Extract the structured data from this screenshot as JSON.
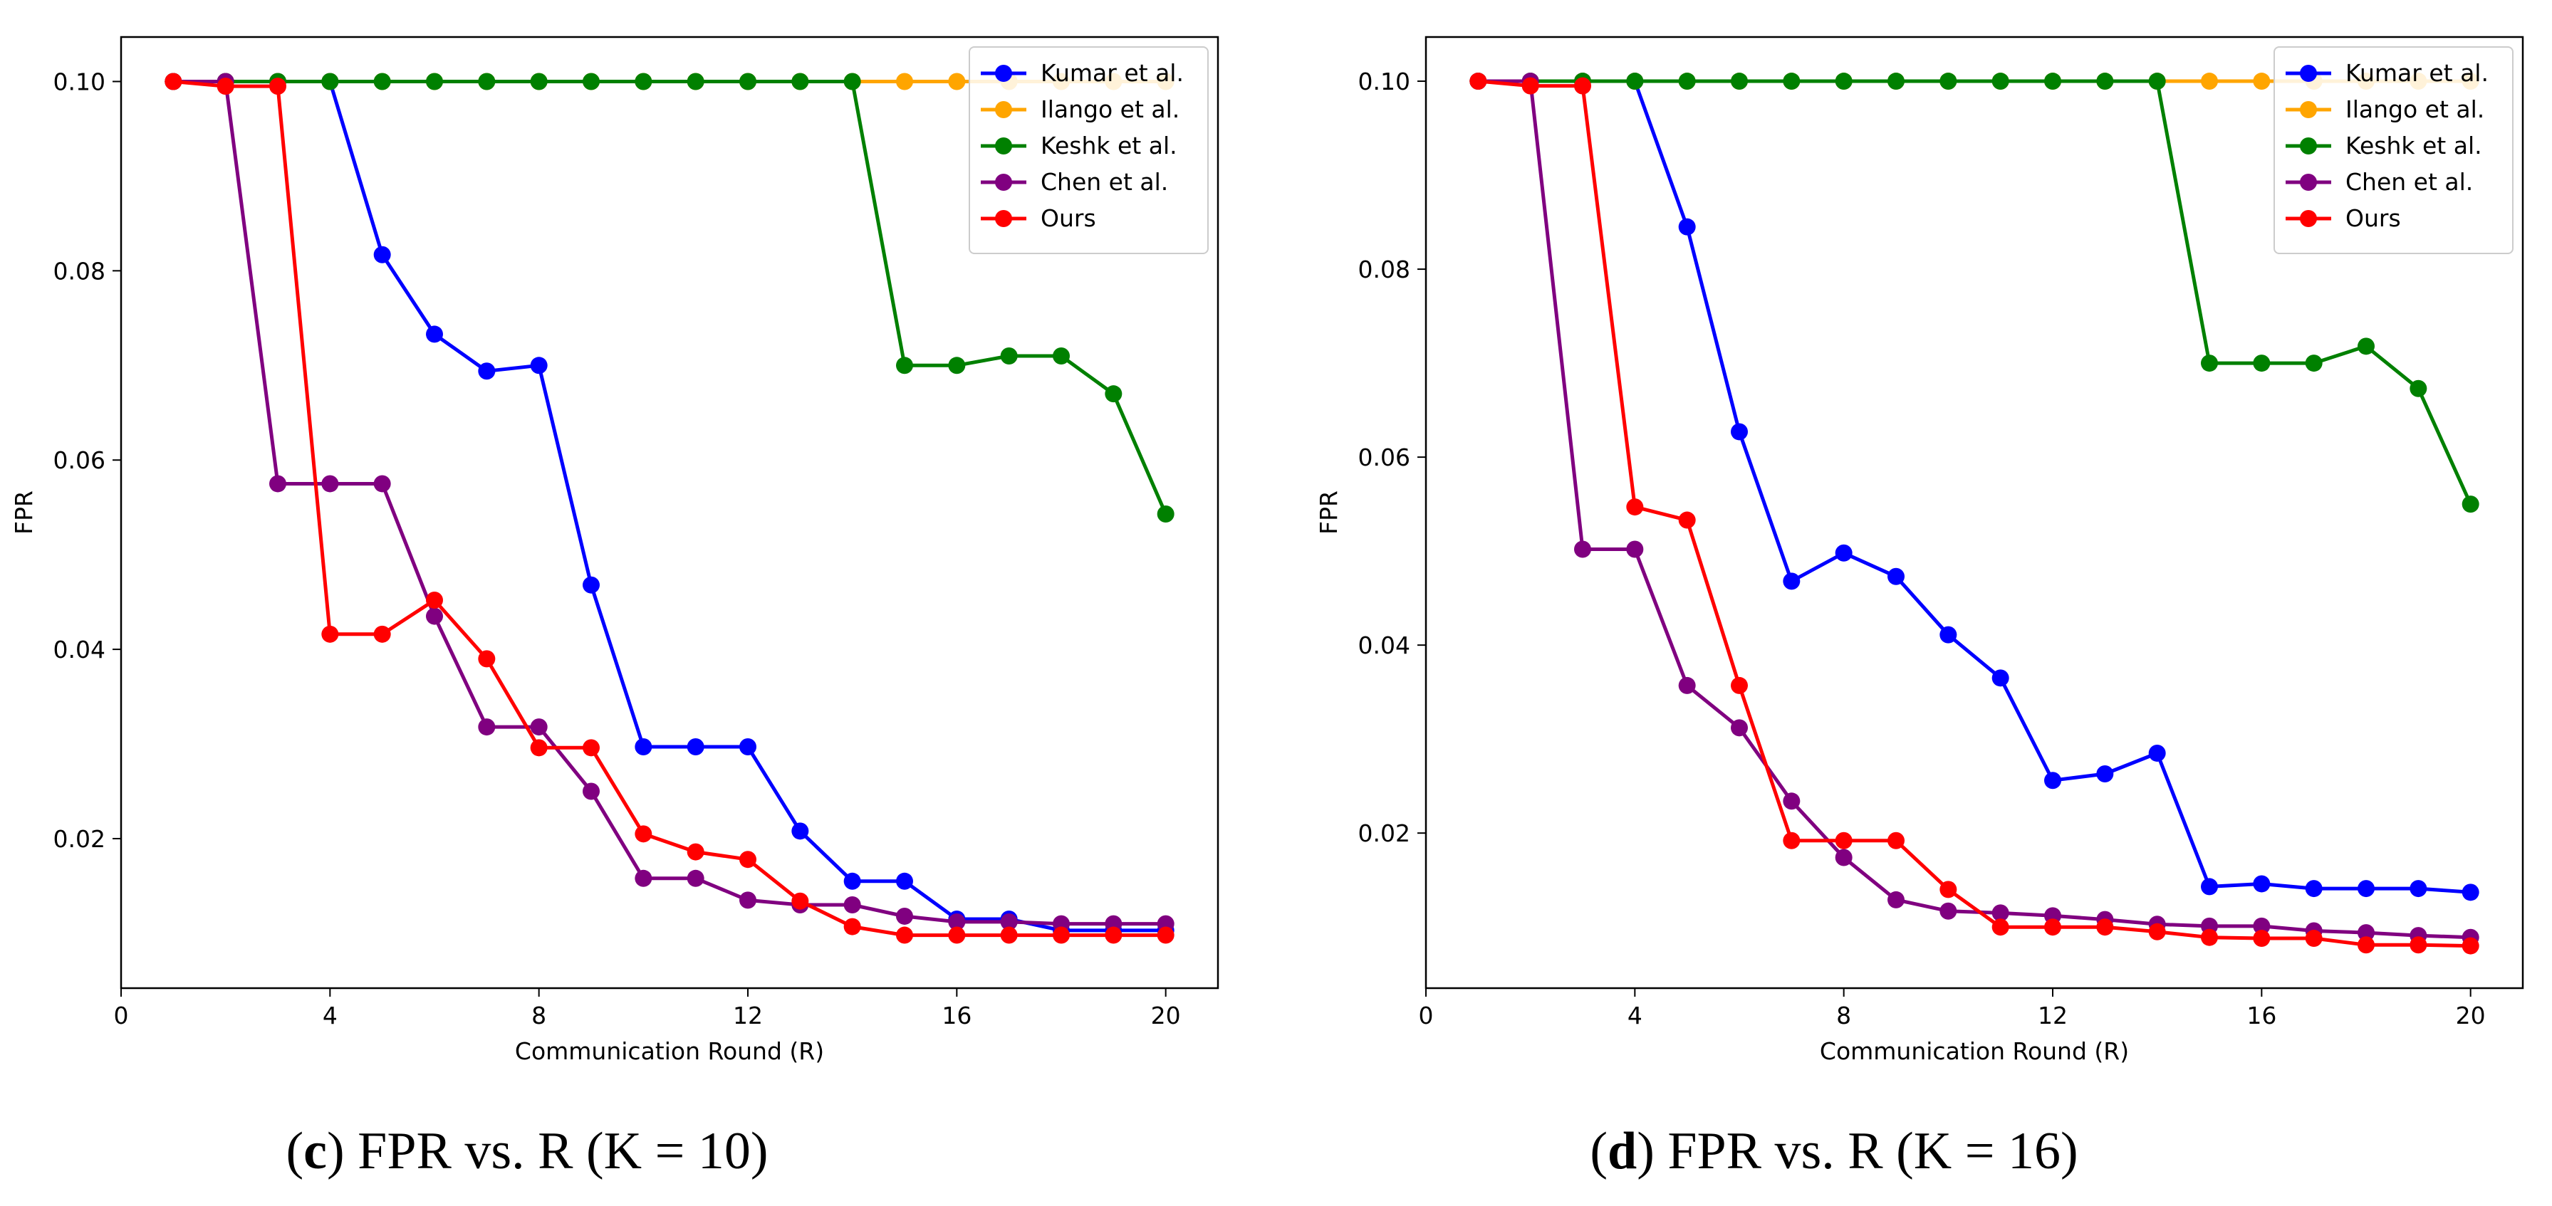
{
  "chart_data": [
    {
      "type": "line",
      "panel": "c",
      "title": "",
      "xlabel": "Communication Round (R)",
      "ylabel": "FPR",
      "xlim": [
        0,
        21
      ],
      "ylim": [
        0.0042,
        0.1047
      ],
      "xticks": [
        0,
        4,
        8,
        12,
        16,
        20
      ],
      "yticks": [
        0.02,
        0.04,
        0.06,
        0.08,
        0.1
      ],
      "ytick_labels": [
        "0.02",
        "0.04",
        "0.06",
        "0.08",
        "0.10"
      ],
      "legend_position": "top-right",
      "x": [
        1,
        2,
        3,
        4,
        5,
        6,
        7,
        8,
        9,
        10,
        11,
        12,
        13,
        14,
        15,
        16,
        17,
        18,
        19,
        20
      ],
      "series": [
        {
          "name": "Kumar et al.",
          "color": "#0000ff",
          "values": [
            0.1,
            0.1,
            0.1,
            0.1,
            0.0817,
            0.0733,
            0.0694,
            0.07,
            0.0468,
            0.0297,
            0.0297,
            0.0297,
            0.0208,
            0.0155,
            0.0155,
            0.0115,
            0.0115,
            0.0103,
            0.0103,
            0.0103
          ]
        },
        {
          "name": "Ilango et al.",
          "color": "#ffa500",
          "values": [
            0.1,
            0.1,
            0.1,
            0.1,
            0.1,
            0.1,
            0.1,
            0.1,
            0.1,
            0.1,
            0.1,
            0.1,
            0.1,
            0.1,
            0.1,
            0.1,
            0.1,
            0.1,
            0.1,
            0.1
          ]
        },
        {
          "name": "Keshk et al.",
          "color": "#008000",
          "values": [
            0.1,
            0.1,
            0.1,
            0.1,
            0.1,
            0.1,
            0.1,
            0.1,
            0.1,
            0.1,
            0.1,
            0.1,
            0.1,
            0.1,
            0.07,
            0.07,
            0.071,
            0.071,
            0.067,
            0.0543
          ]
        },
        {
          "name": "Chen et al.",
          "color": "#800080",
          "values": [
            0.1,
            0.1,
            0.0575,
            0.0575,
            0.0575,
            0.0435,
            0.0318,
            0.0318,
            0.025,
            0.0158,
            0.0158,
            0.0135,
            0.013,
            0.013,
            0.0118,
            0.0112,
            0.0112,
            0.011,
            0.011,
            0.011
          ]
        },
        {
          "name": "Ours",
          "color": "#ff0000",
          "values": [
            0.1,
            0.0995,
            0.0995,
            0.0416,
            0.0416,
            0.0452,
            0.039,
            0.0296,
            0.0296,
            0.0205,
            0.0186,
            0.0178,
            0.0134,
            0.0107,
            0.0098,
            0.0098,
            0.0098,
            0.0098,
            0.0098,
            0.0098
          ]
        }
      ]
    },
    {
      "type": "line",
      "panel": "d",
      "title": "",
      "xlabel": "Communication Round (R)",
      "ylabel": "FPR",
      "xlim": [
        0,
        21
      ],
      "ylim": [
        0.0035,
        0.1047
      ],
      "xticks": [
        0,
        4,
        8,
        12,
        16,
        20
      ],
      "yticks": [
        0.02,
        0.04,
        0.06,
        0.08,
        0.1
      ],
      "ytick_labels": [
        "0.02",
        "0.04",
        "0.06",
        "0.08",
        "0.10"
      ],
      "legend_position": "top-right",
      "x": [
        1,
        2,
        3,
        4,
        5,
        6,
        7,
        8,
        9,
        10,
        11,
        12,
        13,
        14,
        15,
        16,
        17,
        18,
        19,
        20
      ],
      "series": [
        {
          "name": "Kumar et al.",
          "color": "#0000ff",
          "values": [
            0.1,
            0.1,
            0.1,
            0.1,
            0.0845,
            0.0627,
            0.0468,
            0.0498,
            0.0473,
            0.0411,
            0.0365,
            0.0256,
            0.0263,
            0.0285,
            0.0143,
            0.0146,
            0.0141,
            0.0141,
            0.0141,
            0.0137
          ]
        },
        {
          "name": "Ilango et al.",
          "color": "#ffa500",
          "values": [
            0.1,
            0.1,
            0.1,
            0.1,
            0.1,
            0.1,
            0.1,
            0.1,
            0.1,
            0.1,
            0.1,
            0.1,
            0.1,
            0.1,
            0.1,
            0.1,
            0.1,
            0.1,
            0.1,
            0.1
          ]
        },
        {
          "name": "Keshk et al.",
          "color": "#008000",
          "values": [
            0.1,
            0.1,
            0.1,
            0.1,
            0.1,
            0.1,
            0.1,
            0.1,
            0.1,
            0.1,
            0.1,
            0.1,
            0.1,
            0.1,
            0.07,
            0.07,
            0.07,
            0.0718,
            0.0673,
            0.055
          ]
        },
        {
          "name": "Chen et al.",
          "color": "#800080",
          "values": [
            0.1,
            0.1,
            0.0502,
            0.0502,
            0.0357,
            0.0312,
            0.0234,
            0.0174,
            0.0129,
            0.0117,
            0.0115,
            0.0112,
            0.0108,
            0.0103,
            0.0101,
            0.0101,
            0.0096,
            0.0094,
            0.0091,
            0.0089
          ]
        },
        {
          "name": "Ours",
          "color": "#ff0000",
          "values": [
            0.1,
            0.0995,
            0.0995,
            0.0547,
            0.0533,
            0.0357,
            0.0192,
            0.0192,
            0.0192,
            0.014,
            0.01,
            0.01,
            0.01,
            0.0095,
            0.0089,
            0.0088,
            0.0088,
            0.0081,
            0.0081,
            0.008
          ]
        }
      ]
    }
  ],
  "captions": [
    {
      "letter": "c",
      "open": "(",
      "rest": ") FPR vs. R (K = 10)"
    },
    {
      "letter": "d",
      "open": "(",
      "rest": ") FPR vs. R (K = 16)"
    }
  ]
}
